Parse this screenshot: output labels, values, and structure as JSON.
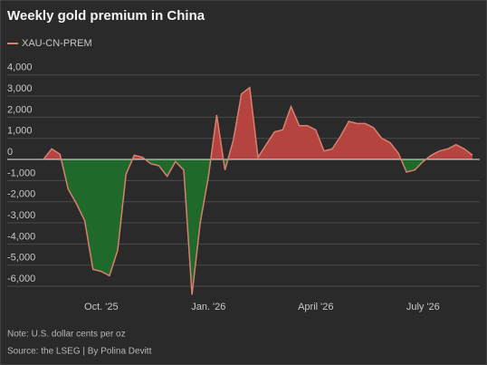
{
  "chart_data": {
    "type": "area-line",
    "title": "Weekly gold premium in China",
    "note": "Note: U.S. dollar cents per oz",
    "source": "Source: the LSEG | By Polina Devitt",
    "categories": [
      null,
      null,
      null,
      null,
      null,
      null,
      null,
      "Oct. '25",
      null,
      null,
      null,
      null,
      null,
      null,
      null,
      null,
      null,
      null,
      null,
      null,
      "Jan. '26",
      null,
      null,
      null,
      null,
      null,
      null,
      null,
      null,
      null,
      null,
      null,
      null,
      "April '26",
      null,
      null,
      null,
      null,
      null,
      null,
      null,
      null,
      null,
      null,
      null,
      null,
      "July '26",
      null,
      null,
      null,
      null,
      null,
      null
    ],
    "series": [
      {
        "name": "XAU-CN-PREM",
        "color": "#d9806f",
        "above_color": "#b5433f",
        "below_color": "#1f6a2b",
        "values": [
          0,
          500,
          250,
          -1400,
          -2100,
          -2900,
          -5200,
          -5300,
          -5500,
          -4300,
          -700,
          200,
          100,
          -200,
          -300,
          -800,
          -100,
          -500,
          -6400,
          -3000,
          -800,
          2100,
          -500,
          900,
          3100,
          3400,
          100,
          700,
          1300,
          1400,
          2500,
          1600,
          1600,
          1400,
          400,
          500,
          1100,
          1800,
          1700,
          1700,
          1500,
          1000,
          800,
          300,
          -600,
          -500,
          -100,
          200,
          400,
          500,
          700,
          500,
          200
        ]
      }
    ],
    "ylim": [
      -6500,
      4300
    ],
    "yticks": [
      {
        "value": 4000,
        "label": "4,000"
      },
      {
        "value": 3000,
        "label": "3,000"
      },
      {
        "value": 2000,
        "label": "2,000"
      },
      {
        "value": 1000,
        "label": "1,000"
      },
      0,
      {
        "value": -1000,
        "label": "-1,000"
      },
      {
        "value": -2000,
        "label": "-2,000"
      },
      {
        "value": -3000,
        "label": "-3,000"
      },
      {
        "value": -4000,
        "label": "-4,000"
      },
      {
        "value": -5000,
        "label": "-5,000"
      },
      {
        "value": -6000,
        "label": "-6,000"
      }
    ],
    "grid": true
  }
}
